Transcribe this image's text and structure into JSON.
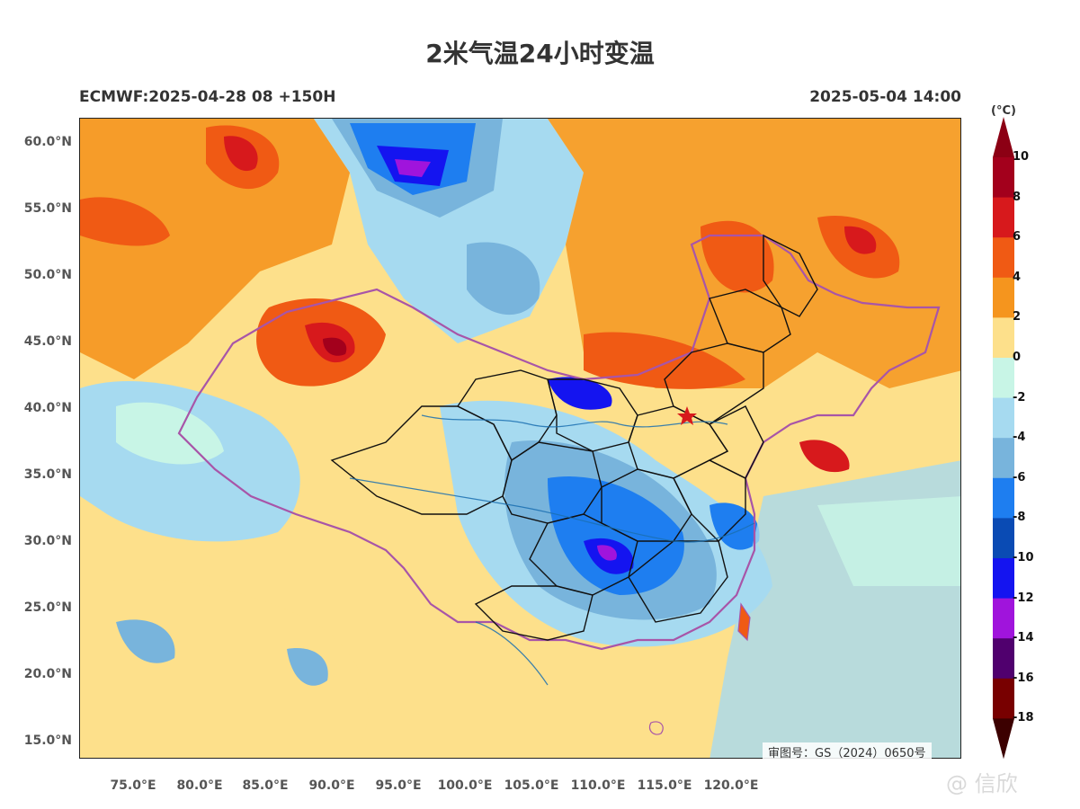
{
  "title": "2米气温24小时变温",
  "subtitle_left": "ECMWF:2025-04-28 08 +150H",
  "subtitle_right": "2025-05-04 14:00",
  "review_number": "审图号：GS（2024）0650号",
  "watermark": "@ 信欣",
  "map": {
    "lat_labels": [
      "60.0°N",
      "55.0°N",
      "50.0°N",
      "45.0°N",
      "40.0°N",
      "35.0°N",
      "30.0°N",
      "25.0°N",
      "20.0°N",
      "15.0°N"
    ],
    "lon_labels": [
      "75.0°E",
      "80.0°E",
      "85.0°E",
      "90.0°E",
      "95.0°E",
      "100.0°E",
      "105.0°E",
      "110.0°E",
      "115.0°E",
      "120.0°E"
    ],
    "capital_marker": "star-icon",
    "border_color": "#a855a8",
    "province_color": "#111111",
    "river_color": "#1a6fb0"
  },
  "colorbar": {
    "unit": "(°C)",
    "labels": [
      "10",
      "8",
      "6",
      "4",
      "2",
      "0",
      "-2",
      "-4",
      "-6",
      "-8",
      "-10",
      "-12",
      "-14",
      "-16",
      "-18"
    ],
    "colors": [
      "#a3001c",
      "#d7191c",
      "#f05a14",
      "#f5951e",
      "#fde08b",
      "#c8f5e6",
      "#a6daf0",
      "#78b4dc",
      "#1e7ef0",
      "#0a4bb4",
      "#1414f0",
      "#a014dc",
      "#50006e",
      "#780000"
    ],
    "top_color": "#8c0014",
    "bottom_color": "#3c0000"
  }
}
